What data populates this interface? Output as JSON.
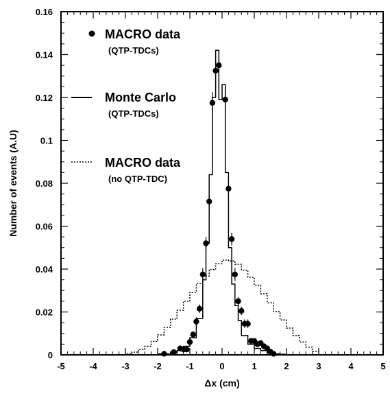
{
  "chart_data": {
    "type": "line",
    "title": "",
    "xlabel": "Δx (cm)",
    "ylabel": "Number of events (A.U)",
    "xlim": [
      -5,
      5
    ],
    "ylim": [
      0,
      0.16
    ],
    "x_ticks": [
      "-5",
      "-4",
      "-3",
      "-2",
      "-1",
      "0",
      "1",
      "2",
      "3",
      "4",
      "5"
    ],
    "y_ticks": [
      "0",
      "0.02",
      "0.04",
      "0.06",
      "0.08",
      "0.1",
      "0.12",
      "0.14",
      "0.16"
    ],
    "grid": false,
    "legend_position": "top-left",
    "legend": [
      {
        "label": "MACRO data",
        "sublabel": "(QTP-TDCs)",
        "style": "points"
      },
      {
        "label": "Monte Carlo",
        "sublabel": "(QTP-TDCs)",
        "style": "solid-histogram"
      },
      {
        "label": "MACRO data",
        "sublabel": "(no QTP-TDC)",
        "style": "dotted-line"
      }
    ],
    "series": [
      {
        "name": "MACRO data",
        "kind": "points",
        "points": [
          {
            "x": -1.8,
            "y": 0.0005,
            "err": 0.0004
          },
          {
            "x": -1.5,
            "y": 0.0013,
            "err": 0.0005
          },
          {
            "x": -1.3,
            "y": 0.003,
            "err": 0.0008
          },
          {
            "x": -1.2,
            "y": 0.0025,
            "err": 0.0008
          },
          {
            "x": -1.1,
            "y": 0.0025,
            "err": 0.0008
          },
          {
            "x": -1.0,
            "y": 0.006,
            "err": 0.001
          },
          {
            "x": -0.9,
            "y": 0.0095,
            "err": 0.0015
          },
          {
            "x": -0.8,
            "y": 0.0155,
            "err": 0.002
          },
          {
            "x": -0.7,
            "y": 0.0215,
            "err": 0.002
          },
          {
            "x": -0.6,
            "y": 0.0375,
            "err": 0.003
          },
          {
            "x": -0.5,
            "y": 0.052,
            "err": 0.003
          },
          {
            "x": -0.4,
            "y": 0.0715,
            "err": 0.004
          },
          {
            "x": -0.3,
            "y": 0.1175,
            "err": 0.005
          },
          {
            "x": -0.2,
            "y": 0.1325,
            "err": 0.005
          },
          {
            "x": -0.1,
            "y": 0.135,
            "err": 0.005
          },
          {
            "x": 0.1,
            "y": 0.119,
            "err": 0.005
          },
          {
            "x": 0.2,
            "y": 0.0775,
            "err": 0.004
          },
          {
            "x": 0.3,
            "y": 0.054,
            "err": 0.003
          },
          {
            "x": 0.4,
            "y": 0.0375,
            "err": 0.003
          },
          {
            "x": 0.5,
            "y": 0.025,
            "err": 0.002
          },
          {
            "x": 0.6,
            "y": 0.0205,
            "err": 0.002
          },
          {
            "x": 0.7,
            "y": 0.0145,
            "err": 0.002
          },
          {
            "x": 0.8,
            "y": 0.0145,
            "err": 0.002
          },
          {
            "x": 0.9,
            "y": 0.0065,
            "err": 0.001
          },
          {
            "x": 1.0,
            "y": 0.0065,
            "err": 0.001
          },
          {
            "x": 1.1,
            "y": 0.005,
            "err": 0.001
          },
          {
            "x": 1.2,
            "y": 0.0055,
            "err": 0.001
          },
          {
            "x": 1.3,
            "y": 0.004,
            "err": 0.001
          },
          {
            "x": 1.4,
            "y": 0.003,
            "err": 0.0008
          },
          {
            "x": 1.5,
            "y": 0.0015,
            "err": 0.0005
          },
          {
            "x": 1.6,
            "y": 0.0005,
            "err": 0.0004
          }
        ]
      },
      {
        "name": "Monte Carlo",
        "kind": "histogram",
        "bin_edges": [
          -2.0,
          -1.6,
          -1.4,
          -1.2,
          -1.0,
          -0.8,
          -0.6,
          -0.5,
          -0.4,
          -0.3,
          -0.2,
          -0.1,
          0.0,
          0.1,
          0.2,
          0.3,
          0.4,
          0.5,
          0.6,
          0.8,
          1.0,
          1.2,
          1.4,
          1.6,
          1.8,
          2.0
        ],
        "values": [
          0.0005,
          0.001,
          0.002,
          0.004,
          0.008,
          0.017,
          0.035,
          0.052,
          0.084,
          0.12,
          0.142,
          0.119,
          0.126,
          0.085,
          0.05,
          0.033,
          0.023,
          0.016,
          0.009,
          0.005,
          0.003,
          0.002,
          0.001,
          0.0005,
          0.0003
        ]
      },
      {
        "name": "MACRO data",
        "kind": "dotted",
        "bin_edges": [
          -3.0,
          -2.8,
          -2.6,
          -2.4,
          -2.2,
          -2.0,
          -1.8,
          -1.6,
          -1.4,
          -1.2,
          -1.0,
          -0.8,
          -0.6,
          -0.4,
          -0.2,
          0.0,
          0.2,
          0.4,
          0.6,
          0.8,
          1.0,
          1.2,
          1.4,
          1.6,
          1.8,
          2.0,
          2.2,
          2.4,
          2.6,
          2.8,
          3.0
        ],
        "values": [
          0.0006,
          0.0013,
          0.0025,
          0.004,
          0.0063,
          0.0093,
          0.0128,
          0.0167,
          0.0208,
          0.025,
          0.0292,
          0.0332,
          0.0368,
          0.0398,
          0.0425,
          0.0442,
          0.0438,
          0.0422,
          0.0395,
          0.0362,
          0.0325,
          0.0285,
          0.0243,
          0.0202,
          0.0163,
          0.0125,
          0.009,
          0.006,
          0.0036,
          0.0017
        ]
      }
    ]
  }
}
